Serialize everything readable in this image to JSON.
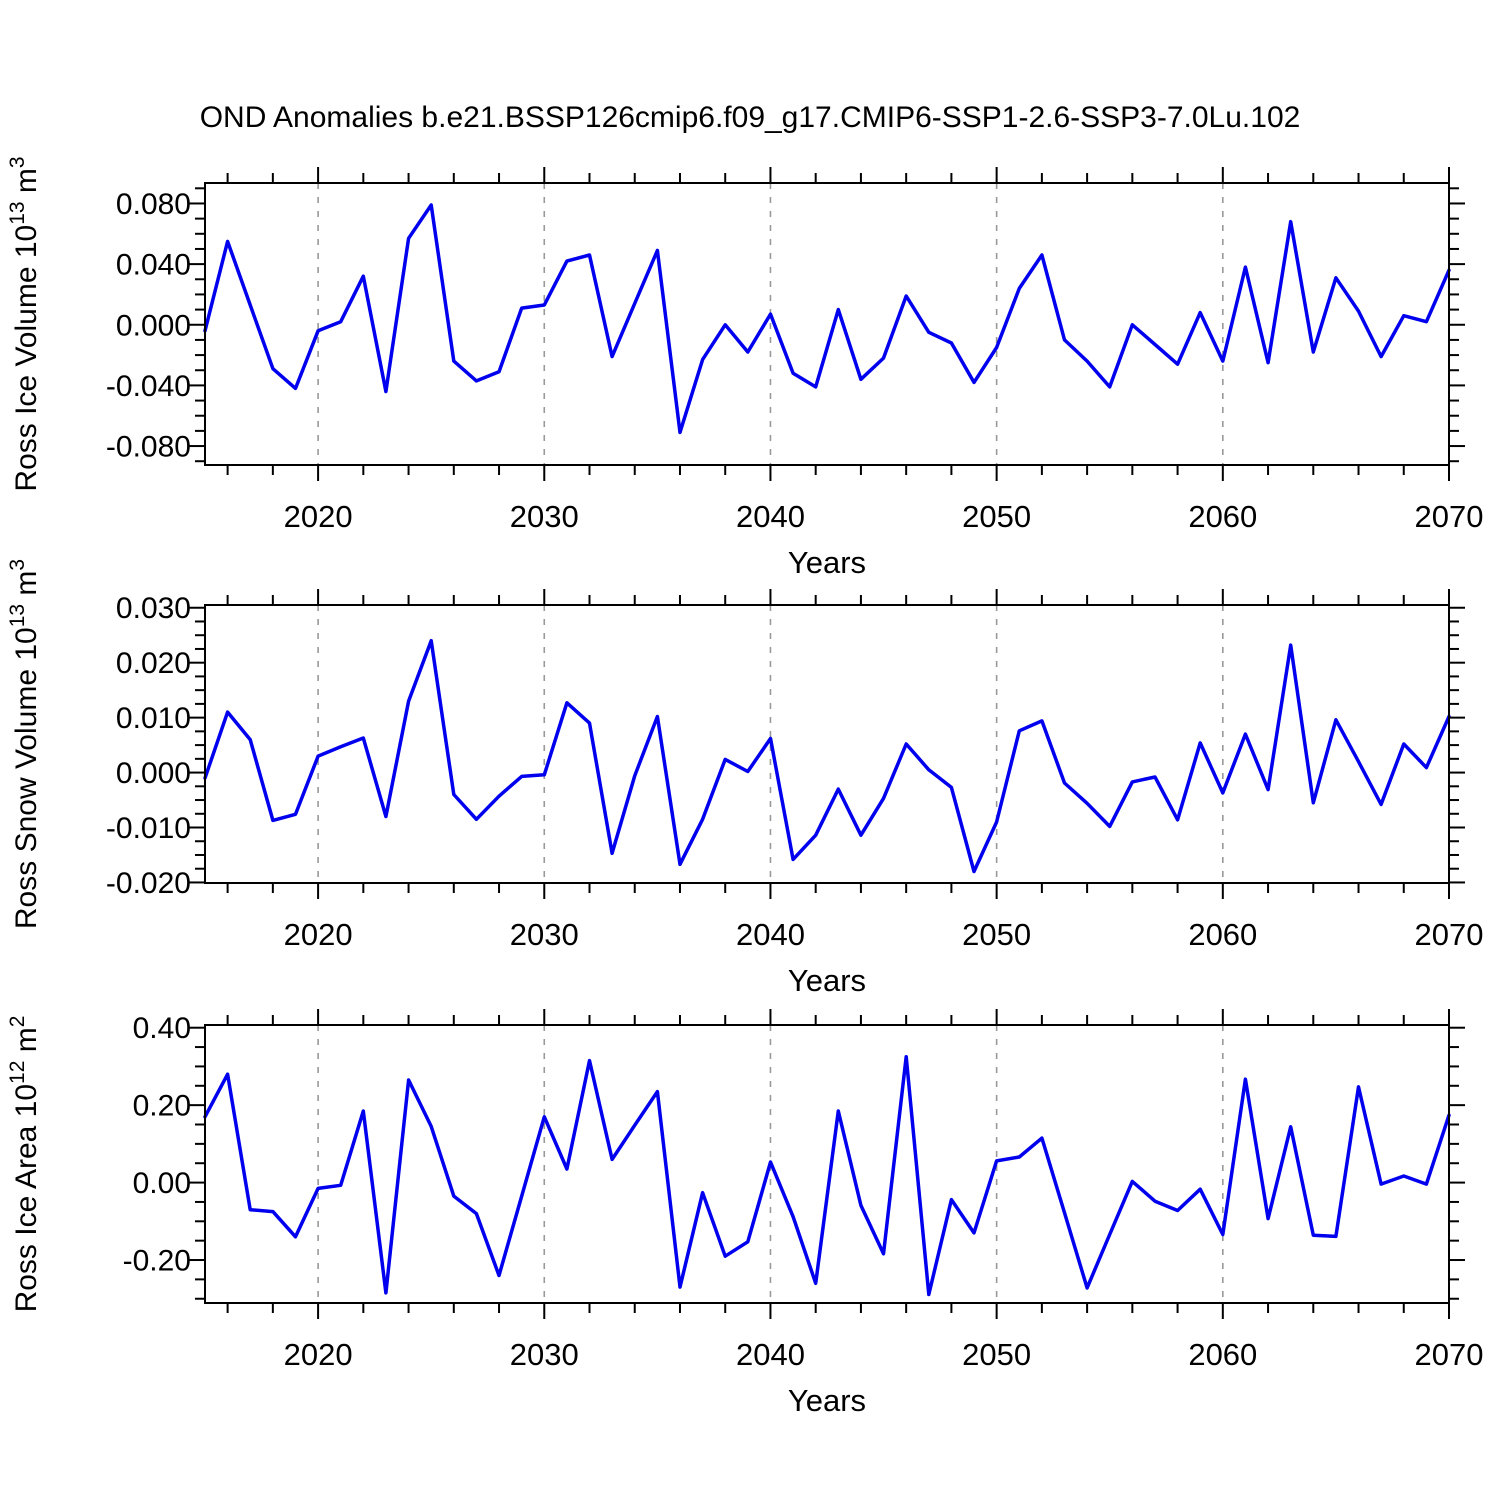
{
  "title": "OND Anomalies b.e21.BSSP126cmip6.f09_g17.CMIP6-SSP1-2.6-SSP3-7.0Lu.102",
  "xlabel": "Years",
  "line_color": "#0000ee",
  "grid_color": "#999999",
  "axis_color": "#000000",
  "x_tick_labels": [
    "2020",
    "2030",
    "2040",
    "2050",
    "2060",
    "2070"
  ],
  "chart_data": [
    {
      "type": "line",
      "id": "ross-ice-volume",
      "ylabel": "Ross Ice Volume 10^13 m^3",
      "ylabel_parts": {
        "prefix": "Ross Ice Volume 10",
        "sup1": "13",
        "mid": " m",
        "sup2": "3"
      },
      "xlabel": "Years",
      "x": [
        2015,
        2016,
        2017,
        2018,
        2019,
        2020,
        2021,
        2022,
        2023,
        2024,
        2025,
        2026,
        2027,
        2028,
        2029,
        2030,
        2031,
        2032,
        2033,
        2034,
        2035,
        2036,
        2037,
        2038,
        2039,
        2040,
        2041,
        2042,
        2043,
        2044,
        2045,
        2046,
        2047,
        2048,
        2049,
        2050,
        2051,
        2052,
        2053,
        2054,
        2055,
        2056,
        2057,
        2058,
        2059,
        2060,
        2061,
        2062,
        2063,
        2064,
        2065,
        2066,
        2067,
        2068,
        2069,
        2070
      ],
      "values": [
        -0.004,
        0.055,
        0.013,
        -0.029,
        -0.042,
        -0.004,
        0.002,
        0.032,
        -0.044,
        0.057,
        0.079,
        -0.024,
        -0.037,
        -0.031,
        0.011,
        0.013,
        0.042,
        0.046,
        -0.021,
        0.014,
        0.049,
        -0.071,
        -0.023,
        0.0,
        -0.018,
        0.007,
        -0.032,
        -0.041,
        0.01,
        -0.036,
        -0.022,
        0.019,
        -0.005,
        -0.012,
        -0.038,
        -0.015,
        0.024,
        0.046,
        -0.01,
        -0.024,
        -0.041,
        0.0,
        -0.013,
        -0.026,
        0.008,
        -0.024,
        0.038,
        -0.025,
        0.068,
        -0.018,
        0.031,
        0.009,
        -0.021,
        0.006,
        0.002,
        0.036
      ],
      "xlim": [
        2015,
        2070
      ],
      "ylim": [
        -0.0925,
        0.0935
      ],
      "yticks": [
        -0.08,
        -0.04,
        0.0,
        0.04,
        0.08
      ],
      "ytick_decimals": 3,
      "y_minor_step": 0.01,
      "x_major_ticks": [
        2020,
        2030,
        2040,
        2050,
        2060,
        2070
      ],
      "x_minor_step": 2,
      "grid": "vertical-dashed-at-decades"
    },
    {
      "type": "line",
      "id": "ross-snow-volume",
      "ylabel": "Ross Snow Volume 10^13 m^3",
      "ylabel_parts": {
        "prefix": "Ross Snow Volume 10",
        "sup1": "13",
        "mid": " m",
        "sup2": "3"
      },
      "xlabel": "Years",
      "x": [
        2015,
        2016,
        2017,
        2018,
        2019,
        2020,
        2021,
        2022,
        2023,
        2024,
        2025,
        2026,
        2027,
        2028,
        2029,
        2030,
        2031,
        2032,
        2033,
        2034,
        2035,
        2036,
        2037,
        2038,
        2039,
        2040,
        2041,
        2042,
        2043,
        2044,
        2045,
        2046,
        2047,
        2048,
        2049,
        2050,
        2051,
        2052,
        2053,
        2054,
        2055,
        2056,
        2057,
        2058,
        2059,
        2060,
        2061,
        2062,
        2063,
        2064,
        2065,
        2066,
        2067,
        2068,
        2069,
        2070
      ],
      "values": [
        -0.001,
        0.011,
        0.006,
        -0.0087,
        -0.0076,
        0.003,
        0.0047,
        0.0063,
        -0.008,
        0.013,
        0.024,
        -0.004,
        -0.0085,
        -0.0043,
        -0.0007,
        -0.0004,
        0.0127,
        0.009,
        -0.0147,
        -0.0006,
        0.0102,
        -0.0167,
        -0.0085,
        0.0024,
        0.0002,
        0.0062,
        -0.0158,
        -0.0114,
        -0.003,
        -0.0114,
        -0.0047,
        0.0052,
        0.0005,
        -0.0027,
        -0.018,
        -0.009,
        0.0076,
        0.0094,
        -0.0019,
        -0.0056,
        -0.0098,
        -0.0017,
        -0.0008,
        -0.0086,
        0.0054,
        -0.0037,
        0.007,
        -0.0031,
        0.0232,
        -0.0055,
        0.0096,
        0.002,
        -0.0058,
        0.0052,
        0.0009,
        0.0102
      ],
      "xlim": [
        2015,
        2070
      ],
      "ylim": [
        -0.0201,
        0.0305
      ],
      "yticks": [
        -0.02,
        -0.01,
        0.0,
        0.01,
        0.02,
        0.03
      ],
      "ytick_decimals": 3,
      "y_minor_step": 0.0025,
      "x_major_ticks": [
        2020,
        2030,
        2040,
        2050,
        2060,
        2070
      ],
      "x_minor_step": 2,
      "grid": "vertical-dashed-at-decades"
    },
    {
      "type": "line",
      "id": "ross-ice-area",
      "ylabel": "Ross Ice Area 10^12 m^2",
      "ylabel_parts": {
        "prefix": "Ross Ice Area 10",
        "sup1": "12",
        "mid": " m",
        "sup2": "2"
      },
      "xlabel": "Years",
      "x": [
        2015,
        2016,
        2017,
        2018,
        2019,
        2020,
        2021,
        2022,
        2023,
        2024,
        2025,
        2026,
        2027,
        2028,
        2029,
        2030,
        2031,
        2032,
        2033,
        2034,
        2035,
        2036,
        2037,
        2038,
        2039,
        2040,
        2041,
        2042,
        2043,
        2044,
        2045,
        2046,
        2047,
        2048,
        2049,
        2050,
        2051,
        2052,
        2053,
        2054,
        2055,
        2056,
        2057,
        2058,
        2059,
        2060,
        2061,
        2062,
        2063,
        2064,
        2065,
        2066,
        2067,
        2068,
        2069,
        2070
      ],
      "values": [
        0.17,
        0.28,
        -0.07,
        -0.075,
        -0.14,
        -0.015,
        -0.007,
        0.185,
        -0.285,
        0.265,
        0.145,
        -0.035,
        -0.08,
        -0.24,
        -0.035,
        0.17,
        0.035,
        0.315,
        0.06,
        0.148,
        0.235,
        -0.27,
        -0.026,
        -0.19,
        -0.153,
        0.053,
        -0.088,
        -0.26,
        0.185,
        -0.059,
        -0.184,
        0.325,
        -0.289,
        -0.044,
        -0.13,
        0.056,
        0.066,
        0.115,
        -0.078,
        -0.272,
        -0.134,
        0.003,
        -0.048,
        -0.072,
        -0.017,
        -0.134,
        0.267,
        -0.093,
        0.144,
        -0.136,
        -0.139,
        0.247,
        -0.004,
        0.017,
        -0.004,
        0.174
      ],
      "xlim": [
        2015,
        2070
      ],
      "ylim": [
        -0.311,
        0.407
      ],
      "yticks": [
        -0.2,
        0.0,
        0.2,
        0.4
      ],
      "ytick_decimals": 2,
      "y_minor_step": 0.05,
      "x_major_ticks": [
        2020,
        2030,
        2040,
        2050,
        2060,
        2070
      ],
      "x_minor_step": 2,
      "grid": "vertical-dashed-at-decades"
    }
  ]
}
